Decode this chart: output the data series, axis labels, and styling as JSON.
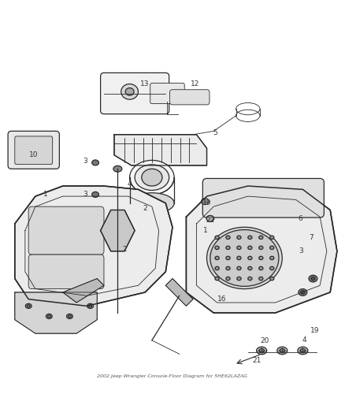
{
  "title": "2002 Jeep Wrangler Console-Floor Diagram for 5HE62LAZAG",
  "background_color": "#ffffff",
  "line_color": "#2a2a2a",
  "label_color": "#444444",
  "figsize": [
    4.38,
    5.33
  ],
  "dpi": 100,
  "footnote": "2002 Jeep Wrangler Console-Floor Diagram for 5HE62LAZAG"
}
